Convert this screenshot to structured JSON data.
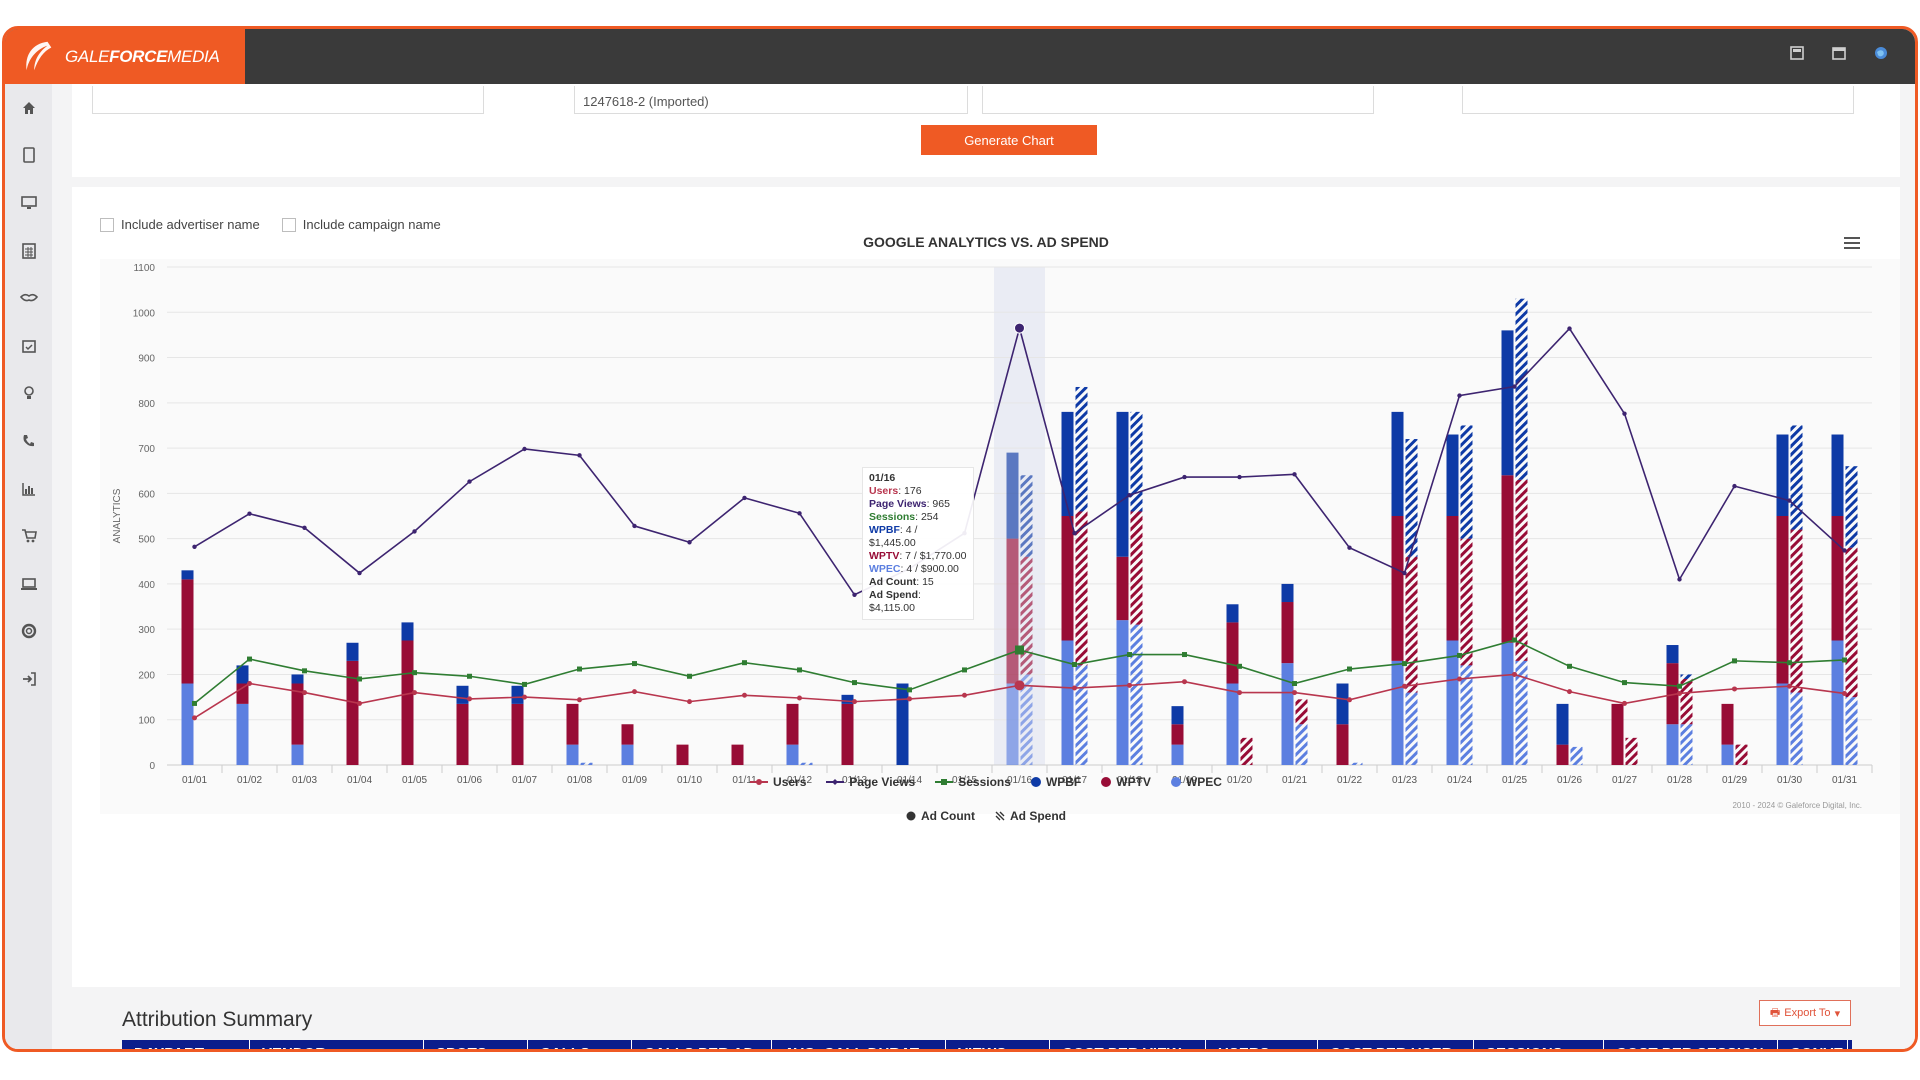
{
  "app": {
    "brand_primary": "GALE",
    "brand_secondary": "FORCE",
    "brand_tertiary": "MEDIA",
    "accent": "#ef5a24"
  },
  "topbar": {
    "icons": [
      "calculator-icon",
      "calendar-icon",
      "globe-icon"
    ]
  },
  "sidebar": {
    "icons": [
      "home-icon",
      "tablet-icon",
      "monitor-icon",
      "calculator-icon",
      "handshake-icon",
      "calendar-check-icon",
      "lightbulb-icon",
      "phone-icon",
      "bar-chart-icon",
      "cart-icon",
      "laptop-icon",
      "lifebuoy-icon",
      "sign-out-icon"
    ]
  },
  "form": {
    "field2_value": "1247618-2 (Imported)",
    "generate_label": "Generate Chart"
  },
  "options": {
    "advertiser_label": "Include advertiser name",
    "campaign_label": "Include campaign name"
  },
  "chart_data": {
    "type": "bar",
    "title": "GOOGLE ANALYTICS VS. AD SPEND",
    "ylabel": "ANALYTICS",
    "ylim": [
      0,
      1100
    ],
    "yticks": [
      0,
      100,
      200,
      300,
      400,
      500,
      600,
      700,
      800,
      900,
      1000,
      1100
    ],
    "categories": [
      "01/01",
      "01/02",
      "01/03",
      "01/04",
      "01/05",
      "01/06",
      "01/07",
      "01/08",
      "01/09",
      "01/10",
      "01/11",
      "01/12",
      "01/13",
      "01/14",
      "01/15",
      "01/16",
      "01/17",
      "01/18",
      "01/19",
      "01/20",
      "01/21",
      "01/22",
      "01/23",
      "01/24",
      "01/25",
      "01/26",
      "01/27",
      "01/28",
      "01/29",
      "01/30",
      "01/31"
    ],
    "lines": [
      {
        "name": "Users",
        "color": "#b8364e",
        "values": [
          104,
          180,
          160,
          136,
          160,
          146,
          150,
          144,
          162,
          140,
          154,
          148,
          140,
          146,
          154,
          176,
          170,
          176,
          184,
          160,
          160,
          144,
          174,
          190,
          200,
          162,
          136,
          158,
          168,
          174,
          158
        ]
      },
      {
        "name": "Page Views",
        "color": "#3d2470",
        "values": [
          482,
          555,
          524,
          424,
          516,
          626,
          698,
          684,
          528,
          492,
          590,
          556,
          376,
          434,
          512,
          965,
          512,
          596,
          636,
          636,
          642,
          480,
          424,
          816,
          836,
          964,
          776,
          410,
          616,
          584,
          474
        ]
      },
      {
        "name": "Sessions",
        "color": "#2f7d32",
        "values": [
          136,
          234,
          208,
          190,
          204,
          196,
          178,
          212,
          224,
          196,
          226,
          210,
          182,
          166,
          210,
          254,
          222,
          244,
          244,
          218,
          180,
          212,
          224,
          242,
          276,
          218,
          182,
          174,
          230,
          226,
          232
        ]
      }
    ],
    "ad_count_bars": [
      {
        "name": "WPBF",
        "color": "#0e3aa6",
        "values": [
          20,
          40,
          20,
          40,
          40,
          40,
          40,
          0,
          0,
          0,
          0,
          0,
          20,
          180,
          0,
          190,
          230,
          320,
          40,
          40,
          40,
          90,
          230,
          180,
          320,
          90,
          0,
          40,
          0,
          180,
          180
        ]
      },
      {
        "name": "WPTV",
        "color": "#980c36",
        "values": [
          230,
          45,
          135,
          230,
          275,
          135,
          135,
          90,
          45,
          45,
          45,
          90,
          135,
          0,
          0,
          320,
          275,
          140,
          45,
          135,
          135,
          90,
          320,
          275,
          370,
          45,
          135,
          135,
          90,
          370,
          275
        ]
      },
      {
        "name": "WPEC",
        "color": "#5c7fe0",
        "values": [
          180,
          135,
          45,
          0,
          0,
          0,
          0,
          45,
          45,
          0,
          0,
          45,
          0,
          0,
          0,
          180,
          275,
          320,
          45,
          180,
          225,
          0,
          230,
          275,
          270,
          0,
          0,
          90,
          45,
          180,
          275
        ]
      }
    ],
    "ad_spend_bars": [
      {
        "name": "WPBF",
        "color": "#0e3aa6",
        "values": [
          0,
          0,
          0,
          0,
          0,
          0,
          0,
          0,
          0,
          0,
          0,
          0,
          0,
          0,
          0,
          180,
          275,
          220,
          0,
          0,
          0,
          0,
          260,
          250,
          400,
          0,
          0,
          10,
          0,
          230,
          180
        ]
      },
      {
        "name": "WPTV",
        "color": "#980c36",
        "values": [
          0,
          0,
          0,
          0,
          0,
          0,
          0,
          0,
          0,
          0,
          0,
          0,
          0,
          0,
          0,
          260,
          340,
          250,
          0,
          60,
          55,
          0,
          300,
          280,
          400,
          0,
          60,
          100,
          45,
          360,
          330
        ]
      },
      {
        "name": "WPEC",
        "color": "#5c7fe0",
        "values": [
          0,
          0,
          0,
          0,
          0,
          0,
          0,
          5,
          0,
          0,
          0,
          5,
          0,
          0,
          0,
          200,
          220,
          310,
          0,
          0,
          90,
          5,
          160,
          220,
          230,
          40,
          0,
          90,
          0,
          160,
          150
        ]
      }
    ],
    "legend": [
      "Users",
      "Page Views",
      "Sessions",
      "WPBF",
      "WPTV",
      "WPEC"
    ],
    "legend2": [
      "Ad Count",
      "Ad Spend"
    ],
    "highlight_index": 15,
    "tooltip": {
      "date": "01/16",
      "users_label": "Users",
      "users_value": ": 176",
      "pv_label": "Page Views",
      "pv_value": ": 965",
      "sessions_label": "Sessions",
      "sessions_value": ": 254",
      "wpbf_label": "WPBF",
      "wpbf_value": ": 4 / $1,445.00",
      "wptv_label": "WPTV",
      "wptv_value": ": 7 / $1,770.00",
      "wpec_label": "WPEC",
      "wpec_value": ": 4 / $900.00",
      "adcount_label": "Ad Count",
      "adcount_value": ": 15",
      "adspend_label": "Ad Spend",
      "adspend_value": ": $4,115.00"
    },
    "copyright": "2010 - 2024 © Galeforce Digital, Inc."
  },
  "attribution": {
    "title": "Attribution Summary",
    "export_label": "Export To",
    "columns": [
      "DAYPART",
      "VENDOR",
      "SPOTS",
      "CALLS",
      "CALLS PER AD",
      "AVG. CALL DURAT...",
      "VIEWS",
      "COST PER VIEW",
      "USERS",
      "COST PER USER",
      "SESSIONS",
      "COST PER SESSION",
      "CONVE"
    ]
  }
}
